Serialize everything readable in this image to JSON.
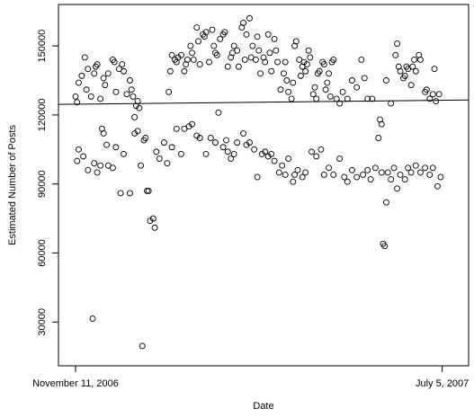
{
  "chart_data": {
    "type": "scatter",
    "x_label": "Date",
    "y_label": "Estimated Number of Posts",
    "x": [
      0,
      1,
      2,
      4,
      6,
      7,
      8,
      10,
      12,
      13,
      14,
      16,
      18,
      19,
      21,
      24,
      25,
      26,
      28,
      30,
      31,
      33,
      35,
      36,
      37,
      38,
      39,
      40,
      41,
      60,
      61,
      62,
      64,
      65,
      66,
      68,
      70,
      71,
      72,
      74,
      75,
      76,
      78,
      79,
      80,
      82,
      83,
      84,
      86,
      88,
      89,
      90,
      91,
      93,
      95,
      96,
      98,
      100,
      101,
      102,
      104,
      105,
      107,
      108,
      109,
      110,
      112,
      113,
      114,
      116,
      117,
      118,
      119,
      121,
      122,
      124,
      125,
      126,
      128,
      129,
      130,
      132,
      134,
      135,
      136,
      137,
      139,
      140,
      141,
      142,
      144,
      145,
      146,
      147,
      148,
      149,
      150,
      151,
      153,
      154,
      155,
      156,
      157,
      159,
      160,
      161,
      162,
      163,
      164,
      165,
      166,
      168,
      170,
      172,
      175,
      178,
      181,
      184,
      186,
      188,
      191,
      196,
      197,
      200,
      203,
      206,
      207,
      208,
      209,
      211,
      212,
      213,
      214,
      216,
      217,
      218,
      219,
      221,
      222,
      225,
      226,
      228,
      230,
      231,
      232,
      234,
      1,
      2,
      5,
      8,
      11,
      12,
      14,
      16,
      17,
      18,
      20,
      21,
      24,
      26,
      29,
      31,
      35,
      38,
      40,
      42,
      43,
      44,
      45,
      46,
      47,
      48,
      50,
      51,
      52,
      54,
      57,
      59,
      62,
      65,
      68,
      70,
      73,
      75,
      78,
      80,
      84,
      87,
      90,
      92,
      95,
      97,
      98,
      100,
      102,
      104,
      108,
      110,
      112,
      115,
      117,
      120,
      122,
      124,
      126,
      128,
      131,
      133,
      135,
      137,
      140,
      141,
      143,
      146,
      148,
      152,
      155,
      158,
      160,
      163,
      166,
      170,
      173,
      175,
      178,
      181,
      185,
      188,
      190,
      193,
      195,
      197,
      198,
      199,
      200,
      201,
      203,
      205,
      207,
      209,
      212,
      214,
      216,
      219,
      222,
      225,
      228,
      230,
      233,
      235
    ],
    "values": [
      128000,
      125500,
      134000,
      137000,
      145000,
      131000,
      140000,
      128000,
      138000,
      141000,
      142000,
      127000,
      136000,
      133000,
      138000,
      144000,
      143000,
      130000,
      140000,
      142000,
      139000,
      129000,
      135000,
      131000,
      128000,
      119000,
      124000,
      126000,
      123000,
      130000,
      139000,
      146000,
      144000,
      143000,
      145000,
      146000,
      139000,
      142000,
      144000,
      150000,
      147000,
      144000,
      158000,
      152000,
      142000,
      155000,
      154000,
      156000,
      143000,
      157000,
      150000,
      147000,
      146000,
      153000,
      155000,
      156000,
      141000,
      145000,
      147000,
      150000,
      148000,
      141000,
      158000,
      160000,
      144000,
      155000,
      162000,
      145000,
      150000,
      144000,
      154000,
      148000,
      138000,
      145000,
      143000,
      155000,
      147000,
      139000,
      153000,
      148000,
      143000,
      131000,
      138000,
      143000,
      135000,
      130000,
      127000,
      134000,
      150000,
      152000,
      144000,
      137000,
      141000,
      143000,
      139000,
      142000,
      148000,
      145000,
      129000,
      132000,
      127000,
      138000,
      139000,
      143000,
      142000,
      131000,
      134000,
      138000,
      128000,
      143000,
      144000,
      127000,
      125000,
      130000,
      127000,
      135000,
      132000,
      144000,
      136000,
      127000,
      127000,
      118000,
      116000,
      135000,
      125000,
      146000,
      151000,
      141000,
      139000,
      136000,
      137000,
      141000,
      140000,
      133000,
      141000,
      144000,
      139000,
      146000,
      144000,
      130000,
      131000,
      127000,
      129000,
      140000,
      126000,
      129000,
      100000,
      105000,
      102000,
      96000,
      31500,
      99000,
      95000,
      98000,
      114000,
      112000,
      107000,
      98000,
      97000,
      106000,
      86000,
      103000,
      86000,
      112000,
      113000,
      98000,
      19600,
      109000,
      110000,
      87000,
      87000,
      74000,
      75000,
      71000,
      104000,
      101000,
      108000,
      99000,
      106000,
      114000,
      103000,
      114000,
      115000,
      116000,
      111000,
      110000,
      103000,
      110000,
      108000,
      121000,
      106000,
      109000,
      104000,
      101000,
      103000,
      108000,
      112000,
      107000,
      108000,
      105000,
      93000,
      103000,
      104000,
      102000,
      103000,
      100000,
      95000,
      98000,
      94000,
      101000,
      91000,
      94000,
      96000,
      93000,
      95000,
      104000,
      102000,
      105000,
      94000,
      97000,
      94000,
      101000,
      93000,
      91000,
      96000,
      93000,
      94000,
      96000,
      92000,
      97000,
      110000,
      95000,
      64000,
      63000,
      82000,
      95000,
      92000,
      97000,
      88000,
      94000,
      92000,
      97000,
      95000,
      98000,
      95000,
      97000,
      94000,
      97000,
      89000,
      93000
    ],
    "color": "#000000",
    "fit_line": {
      "x": [
        -11,
        253
      ],
      "values": [
        124600,
        126500
      ]
    },
    "xlim": [
      -11,
      253
    ],
    "xticks": [
      {
        "value": 0,
        "label": "November 11, 2006"
      },
      {
        "value": 236,
        "label": "July 5, 2007"
      }
    ],
    "ylim": [
      11000,
      168000
    ],
    "yticks": [
      30000,
      60000,
      90000,
      120000,
      150000
    ]
  }
}
